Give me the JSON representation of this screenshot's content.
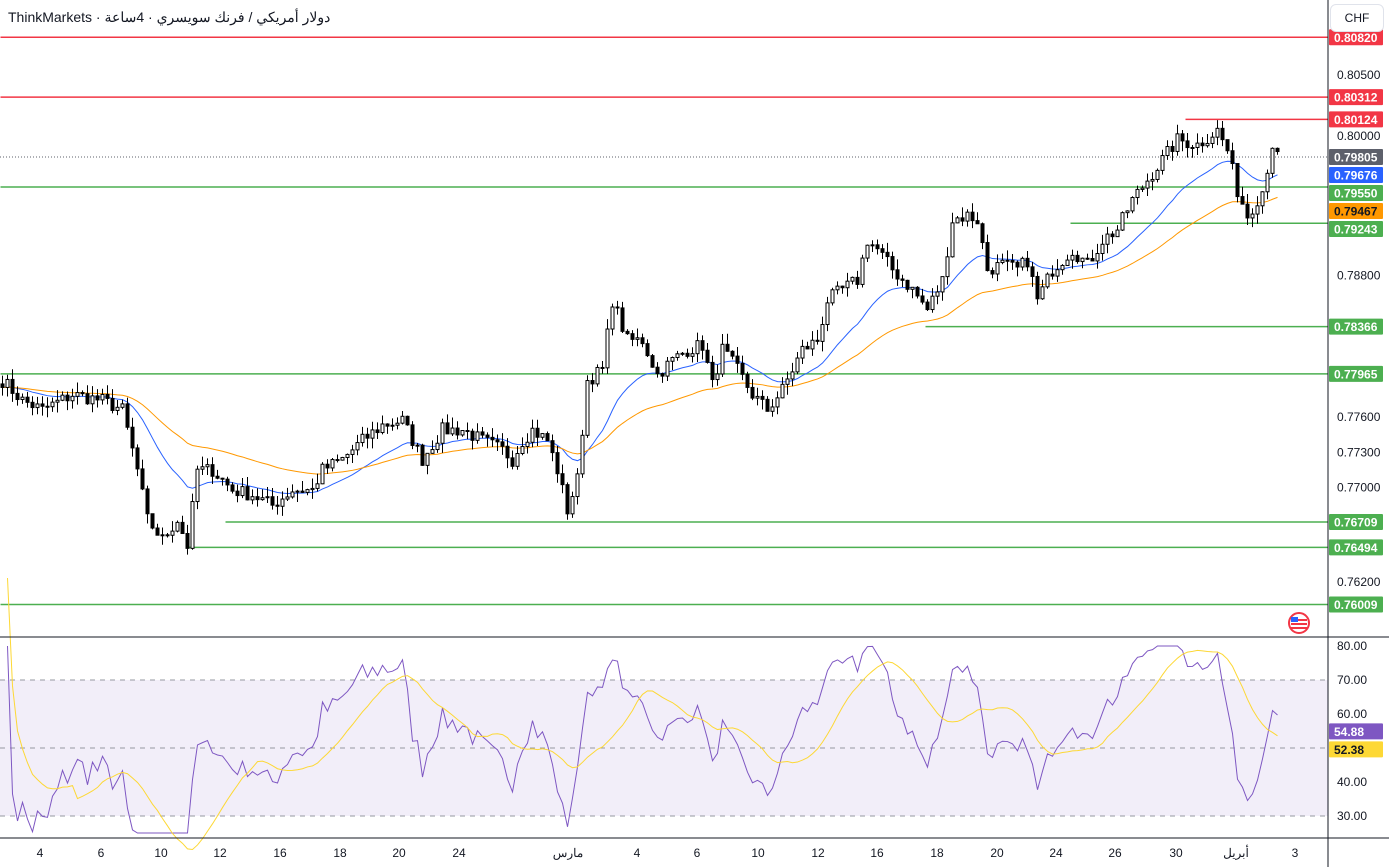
{
  "header": {
    "title": "ThinkMarkets · دولار أمريكي / فرنك سويسري · 4ساعة",
    "currency": "CHF"
  },
  "chart_data": {
    "type": "candlestick",
    "symbol": "USD/CHF",
    "timeframe": "4H",
    "price_ticks": [
      "0.80500",
      "0.80000",
      "0.78800",
      "0.77600",
      "0.77300",
      "0.77000",
      "0.76200"
    ],
    "price_range": [
      0.7575,
      0.8117
    ],
    "x_ticks": [
      "4",
      "6",
      "10",
      "12",
      "16",
      "18",
      "20",
      "24",
      "مارس",
      "4",
      "6",
      "10",
      "12",
      "16",
      "18",
      "20",
      "24",
      "26",
      "30",
      "أبريل",
      "3"
    ],
    "close_keypoints_bar_price": [
      [
        0,
        0.7791
      ],
      [
        4,
        0.7774
      ],
      [
        8,
        0.7766
      ],
      [
        14,
        0.7779
      ],
      [
        20,
        0.7774
      ],
      [
        24,
        0.7766
      ],
      [
        27,
        0.7715
      ],
      [
        29,
        0.7673
      ],
      [
        32,
        0.7656
      ],
      [
        35,
        0.7673
      ],
      [
        37,
        0.7651
      ],
      [
        39,
        0.7715
      ],
      [
        42,
        0.7715
      ],
      [
        46,
        0.7698
      ],
      [
        50,
        0.7694
      ],
      [
        54,
        0.7685
      ],
      [
        58,
        0.7698
      ],
      [
        62,
        0.7698
      ],
      [
        64,
        0.7715
      ],
      [
        68,
        0.7724
      ],
      [
        72,
        0.774
      ],
      [
        76,
        0.7753
      ],
      [
        80,
        0.7757
      ],
      [
        84,
        0.7724
      ],
      [
        88,
        0.7749
      ],
      [
        92,
        0.7749
      ],
      [
        96,
        0.774
      ],
      [
        100,
        0.7732
      ],
      [
        102,
        0.7724
      ],
      [
        104,
        0.774
      ],
      [
        106,
        0.7749
      ],
      [
        109,
        0.774
      ],
      [
        111,
        0.7715
      ],
      [
        113,
        0.7681
      ],
      [
        115,
        0.7707
      ],
      [
        117,
        0.7791
      ],
      [
        120,
        0.78
      ],
      [
        122,
        0.7859
      ],
      [
        125,
        0.7825
      ],
      [
        128,
        0.7825
      ],
      [
        131,
        0.7796
      ],
      [
        134,
        0.7808
      ],
      [
        137,
        0.7817
      ],
      [
        140,
        0.7821
      ],
      [
        142,
        0.7787
      ],
      [
        144,
        0.7817
      ],
      [
        147,
        0.78
      ],
      [
        150,
        0.7779
      ],
      [
        153,
        0.7766
      ],
      [
        156,
        0.7783
      ],
      [
        160,
        0.7817
      ],
      [
        163,
        0.7825
      ],
      [
        165,
        0.7859
      ],
      [
        168,
        0.7868
      ],
      [
        171,
        0.7876
      ],
      [
        173,
        0.791
      ],
      [
        175,
        0.7902
      ],
      [
        178,
        0.7885
      ],
      [
        182,
        0.7868
      ],
      [
        185,
        0.7851
      ],
      [
        188,
        0.7876
      ],
      [
        190,
        0.7927
      ],
      [
        193,
        0.7931
      ],
      [
        195,
        0.7927
      ],
      [
        197,
        0.7885
      ],
      [
        200,
        0.7889
      ],
      [
        203,
        0.7885
      ],
      [
        205,
        0.7893
      ],
      [
        207,
        0.7859
      ],
      [
        210,
        0.7885
      ],
      [
        214,
        0.7902
      ],
      [
        217,
        0.7889
      ],
      [
        220,
        0.791
      ],
      [
        223,
        0.7919
      ],
      [
        226,
        0.7944
      ],
      [
        229,
        0.7961
      ],
      [
        232,
        0.7978
      ],
      [
        235,
        0.7995
      ],
      [
        239,
        0.7991
      ],
      [
        243,
        0.8003
      ],
      [
        245,
        0.7986
      ],
      [
        247,
        0.7952
      ],
      [
        249,
        0.7931
      ],
      [
        252,
        0.7952
      ],
      [
        254,
        0.7991
      ],
      [
        255,
        0.798
      ]
    ],
    "indicators": {
      "ema_fast": {
        "period": 20,
        "color": "#2962ff",
        "last": "0.79676"
      },
      "ema_slow": {
        "period": 50,
        "color": "#ff9800",
        "last": "0.79467"
      },
      "rsi": {
        "period": 14,
        "value": "54.88",
        "ma_value": "52.38",
        "ticks": [
          "80.00",
          "70.00",
          "60.00",
          "40.00",
          "30.00"
        ],
        "upper": 70,
        "middle": 50,
        "lower": 30
      }
    },
    "current_price": "0.79805",
    "levels": [
      {
        "price": 0.8082,
        "label": "0.80820",
        "color": "#f23645",
        "fromBar": 0
      },
      {
        "price": 0.80312,
        "label": "0.80312",
        "color": "#f23645",
        "fromBar": 0
      },
      {
        "price": 0.80124,
        "label": "0.80124",
        "color": "#f23645",
        "fromBar": 237
      },
      {
        "price": 0.7955,
        "label": "0.79550",
        "color": "#4caf50",
        "fromBar": 0
      },
      {
        "price": 0.79243,
        "label": "0.79243",
        "color": "#4caf50",
        "fromBar": 214
      },
      {
        "price": 0.78366,
        "label": "0.78366",
        "color": "#4caf50",
        "fromBar": 185
      },
      {
        "price": 0.77965,
        "label": "0.77965",
        "color": "#4caf50",
        "fromBar": 0
      },
      {
        "price": 0.76709,
        "label": "0.76709",
        "color": "#4caf50",
        "fromBar": 45
      },
      {
        "price": 0.76494,
        "label": "0.76494",
        "color": "#4caf50",
        "fromBar": 37
      },
      {
        "price": 0.76009,
        "label": "0.76009",
        "color": "#4caf50",
        "fromBar": 0
      }
    ],
    "colors": {
      "up": "#ffffff",
      "down": "#000000",
      "rsi": "#7e57c2",
      "rsi_ma": "#fdd835",
      "grey_label": "#5d606b"
    }
  }
}
